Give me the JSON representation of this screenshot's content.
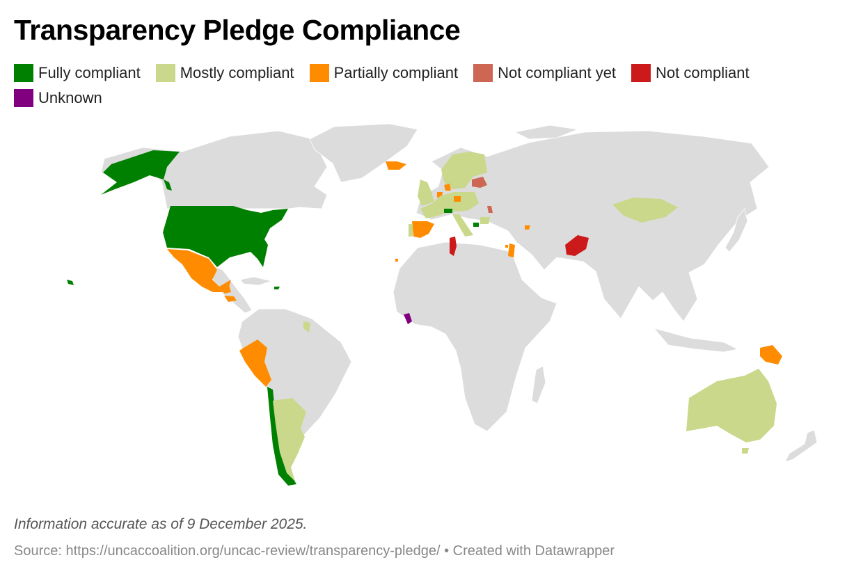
{
  "title": "Transparency Pledge Compliance",
  "legend": [
    {
      "label": "Fully compliant",
      "color": "#008000"
    },
    {
      "label": "Mostly compliant",
      "color": "#c9d88b"
    },
    {
      "label": "Partially compliant",
      "color": "#ff8c00"
    },
    {
      "label": "Not compliant yet",
      "color": "#cd6652"
    },
    {
      "label": "Not compliant",
      "color": "#cc1a1a"
    },
    {
      "label": "Unknown",
      "color": "#800080"
    }
  ],
  "base_land_color": "#dcdcdc",
  "note": "Information accurate as of 9 December 2025.",
  "source": "Source: https://uncaccoalition.org/uncac-review/transparency-pledge/ • Created with Datawrapper"
}
